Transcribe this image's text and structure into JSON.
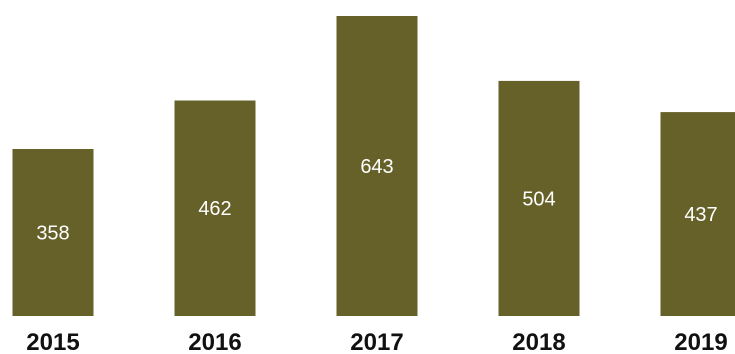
{
  "chart_data": {
    "type": "bar",
    "categories": [
      "2015",
      "2016",
      "2017",
      "2018",
      "2019"
    ],
    "values": [
      358,
      462,
      643,
      504,
      437
    ],
    "data_labels": [
      "358",
      "462",
      "643",
      "504",
      "437"
    ],
    "title": "",
    "xlabel": "",
    "ylabel": "",
    "ylim": [
      0,
      660
    ],
    "grid": false,
    "legend": "none",
    "bar_color": "#666129",
    "label_color": "#ffffff",
    "category_color": "#111111"
  }
}
